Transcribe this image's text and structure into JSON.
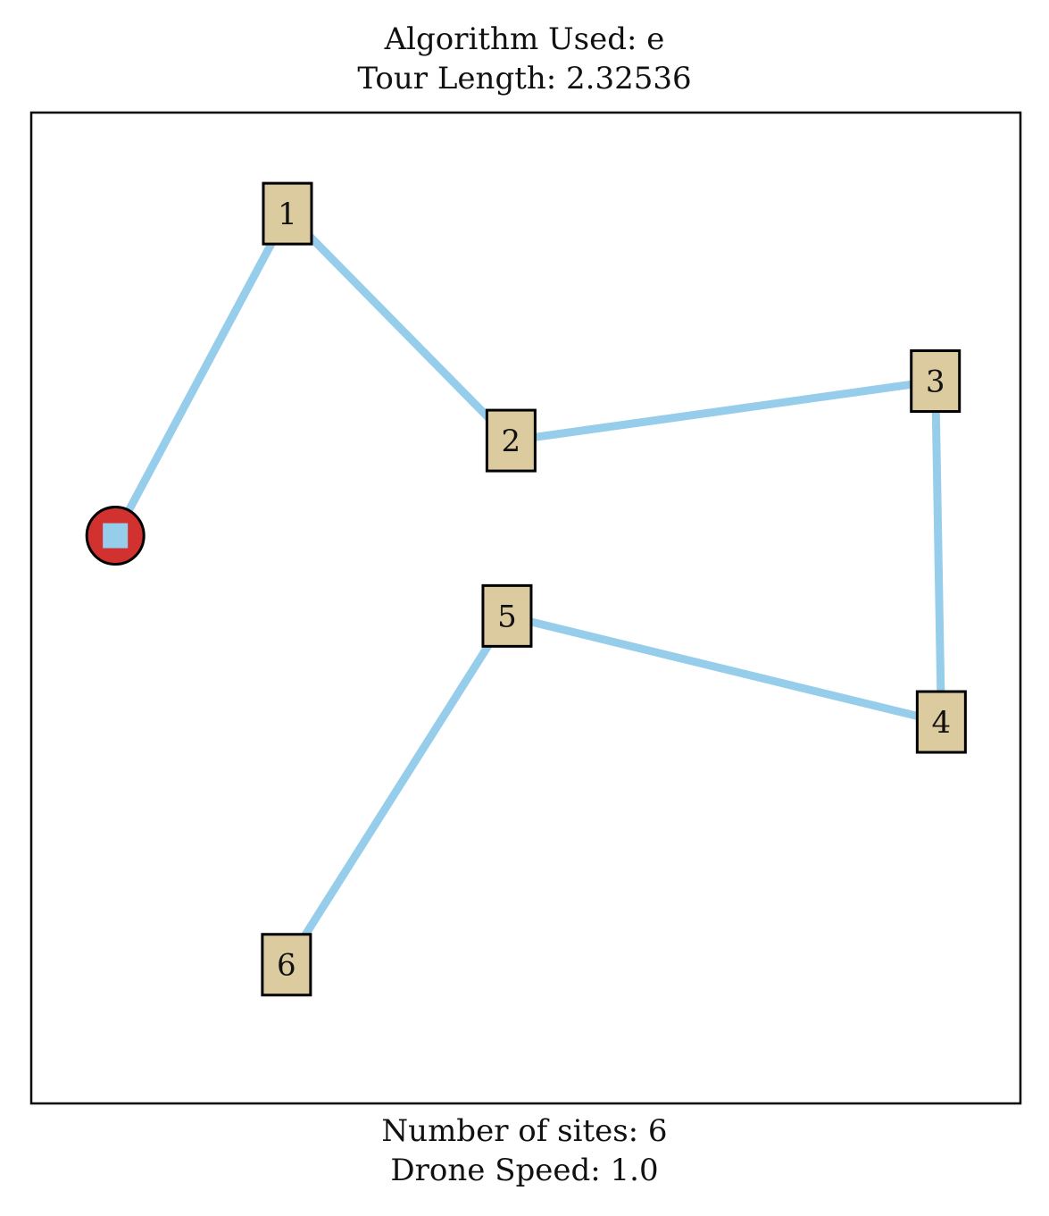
{
  "title": {
    "algorithm": "Algorithm Used: e",
    "tour_length": "Tour Length: 2.32536"
  },
  "footer": {
    "num_sites": "Number of sites: 6",
    "drone_speed": "Drone Speed: 1.0"
  },
  "colors": {
    "route": "#95cdeb",
    "site_fill": "#dccb9f",
    "depot_fill": "#d1312f",
    "depot_marker": "#95cdeb",
    "frame": "#000000"
  },
  "chart_data": {
    "type": "scatter",
    "xlim": [
      0,
      1
    ],
    "ylim": [
      0,
      1
    ],
    "depot": {
      "x": 0.085,
      "y": 0.573
    },
    "sites": [
      {
        "label": "1",
        "x": 0.259,
        "y": 0.898
      },
      {
        "label": "2",
        "x": 0.485,
        "y": 0.669
      },
      {
        "label": "3",
        "x": 0.914,
        "y": 0.729
      },
      {
        "label": "4",
        "x": 0.92,
        "y": 0.385
      },
      {
        "label": "5",
        "x": 0.481,
        "y": 0.492
      },
      {
        "label": "6",
        "x": 0.258,
        "y": 0.14
      }
    ],
    "tour_order": [
      "depot",
      "1",
      "2",
      "3",
      "4",
      "5",
      "6"
    ]
  }
}
